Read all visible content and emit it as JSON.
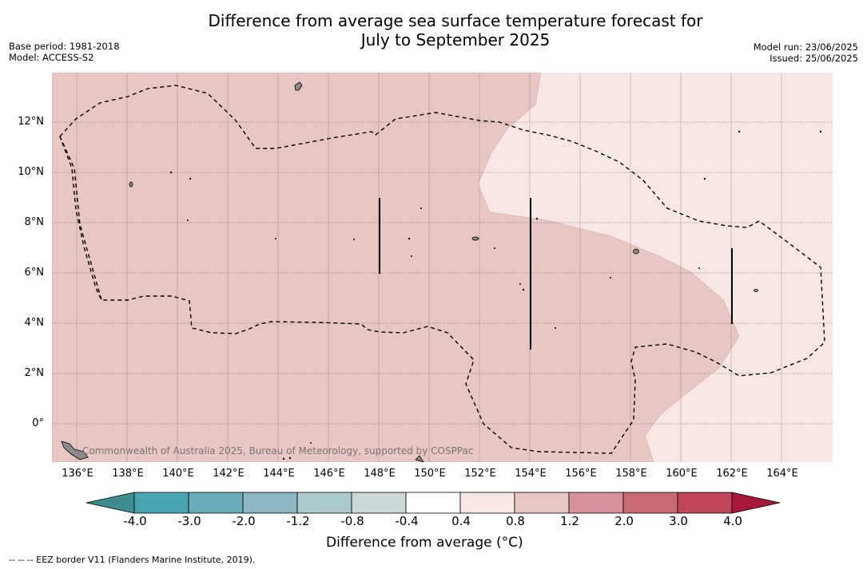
{
  "title": {
    "line1": "Difference from average sea surface temperature forecast for",
    "line2": "July to September 2025"
  },
  "meta_left": {
    "base_period": "Base period: 1981-2018",
    "model": "Model: ACCESS-S2"
  },
  "meta_right": {
    "model_run": "Model run: 23/06/2025",
    "issued": "Issued: 25/06/2025"
  },
  "map": {
    "lon_range": [
      135,
      166
    ],
    "lat_range": [
      -1.5,
      14
    ],
    "latitude_labels": [
      "12°N",
      "10°N",
      "8°N",
      "6°N",
      "4°N",
      "2°N",
      "0°"
    ],
    "longitude_labels": [
      "136°E",
      "138°E",
      "140°E",
      "142°E",
      "144°E",
      "146°E",
      "148°E",
      "150°E",
      "152°E",
      "154°E",
      "156°E",
      "158°E",
      "160°E",
      "162°E",
      "164°E"
    ],
    "copyright": "Commonwealth of Australia 2025, Bureau of Meteorology, supported by COSPPac",
    "colors": {
      "category_0_4_to_0_8": "#f6e7e4",
      "category_0_8_to_1_2": "#e8c6c1",
      "land": "#8a8a8a"
    },
    "regions": [
      {
        "name": "0.8 to 1.2",
        "color": "#e8c6c1"
      },
      {
        "name": "0.4 to 0.8",
        "color": "#f6e7e4"
      }
    ]
  },
  "colorbar": {
    "label": "Difference from average (°C)",
    "ticks": [
      "-4.0",
      "-3.0",
      "-2.0",
      "-1.2",
      "-0.8",
      "-0.4",
      "0.4",
      "0.8",
      "1.2",
      "2.0",
      "3.0",
      "4.0"
    ],
    "colors": [
      "#48a3b3",
      "#6aacbb",
      "#8ab7c2",
      "#a9c9cc",
      "#ccd8d8",
      "#ffffff",
      "#f6e7e4",
      "#e8c6c1",
      "#d5929a",
      "#c86a74",
      "#bf4558"
    ],
    "extend_low": "#3d8c8f",
    "extend_high": "#a8183a"
  },
  "footnote": "-- -- -- EEZ border V11 (Flanders Marine Institute, 2019)."
}
